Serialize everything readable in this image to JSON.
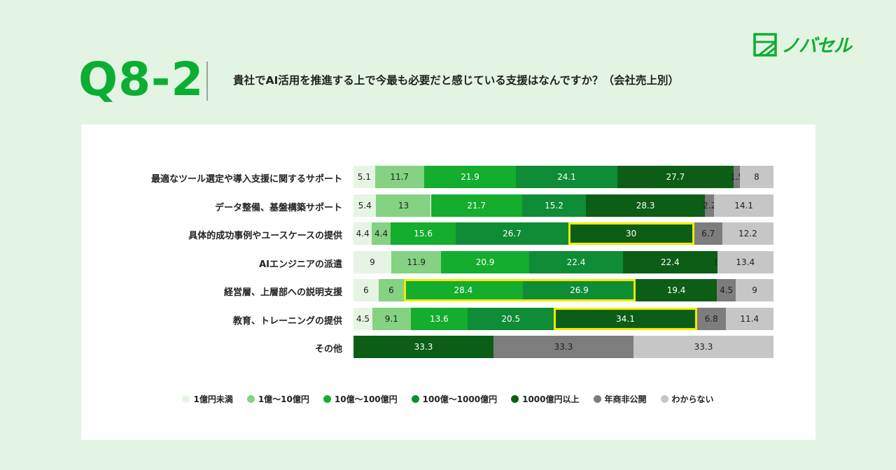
{
  "header": {
    "question_number": "Q8-2",
    "question_text": "貴社でAI活用を推進する上で今最も必要だと感じている支援はなんですか？（会社売上別）",
    "brand_name": "ノバセル",
    "brand_color": "#0bae32"
  },
  "chart_data": {
    "type": "bar",
    "stacked": true,
    "orientation": "horizontal",
    "normalized_percent": true,
    "categories": [
      "最適なツール選定や導入支援に関するサポート",
      "データ整備、基盤構築サポート",
      "具体的成功事例やユースケースの提供",
      "AIエンジニアの派遣",
      "経営層、上層部への説明支援",
      "教育、トレーニングの提供",
      "その他"
    ],
    "series": [
      {
        "name": "1億円未満",
        "color": "#e6f4e4",
        "text_color": "#222222",
        "values": [
          5.1,
          5.4,
          4.4,
          9,
          6,
          4.5,
          0
        ]
      },
      {
        "name": "1億〜10億円",
        "color": "#84d282",
        "text_color": "#222222",
        "values": [
          11.7,
          13,
          4.4,
          11.9,
          6,
          9.1,
          0
        ]
      },
      {
        "name": "10億〜100億円",
        "color": "#14ad2e",
        "text_color": "#ffffff",
        "values": [
          21.9,
          21.7,
          15.6,
          20.9,
          28.4,
          13.6,
          0
        ]
      },
      {
        "name": "100億〜1000億円",
        "color": "#0f8c36",
        "text_color": "#ffffff",
        "values": [
          24.1,
          15.2,
          26.7,
          22.4,
          26.9,
          20.5,
          0
        ]
      },
      {
        "name": "1000億円以上",
        "color": "#0c5e16",
        "text_color": "#ffffff",
        "values": [
          27.7,
          28.3,
          30,
          22.4,
          19.4,
          34.1,
          33.3
        ]
      },
      {
        "name": "年商非公開",
        "color": "#7d7d7d",
        "text_color": "#222222",
        "values": [
          1.5,
          2.2,
          6.7,
          0,
          4.5,
          6.8,
          33.3
        ]
      },
      {
        "name": "わからない",
        "color": "#c6c6c6",
        "text_color": "#222222",
        "values": [
          8,
          14.1,
          12.2,
          13.4,
          9,
          11.4,
          33.3
        ]
      }
    ],
    "value_labels": [
      [
        "5.1",
        "11.7",
        "21.9",
        "24.1",
        "27.7",
        "1.5",
        "8"
      ],
      [
        "5.4",
        "13",
        "21.7",
        "15.2",
        "28.3",
        "2.2",
        "14.1"
      ],
      [
        "4.4",
        "4.4",
        "15.6",
        "26.7",
        "30",
        "6.7",
        "12.2"
      ],
      [
        "9",
        "11.9",
        "20.9",
        "22.4",
        "22.4",
        "0",
        "13.4"
      ],
      [
        "6",
        "6",
        "28.4",
        "26.9",
        "19.4",
        "4.5",
        "9"
      ],
      [
        "4.5",
        "9.1",
        "13.6",
        "20.5",
        "34.1",
        "6.8",
        "11.4"
      ],
      [
        "",
        "",
        "",
        "",
        "33.3",
        "33.3",
        "33.3"
      ]
    ],
    "highlights": [
      {
        "category_index": 2,
        "series_index": [
          4
        ]
      },
      {
        "category_index": 4,
        "series_index": [
          2,
          3
        ]
      },
      {
        "category_index": 5,
        "series_index": [
          4
        ]
      }
    ],
    "highlight_color": "#f2ea00",
    "legend_position": "bottom"
  }
}
